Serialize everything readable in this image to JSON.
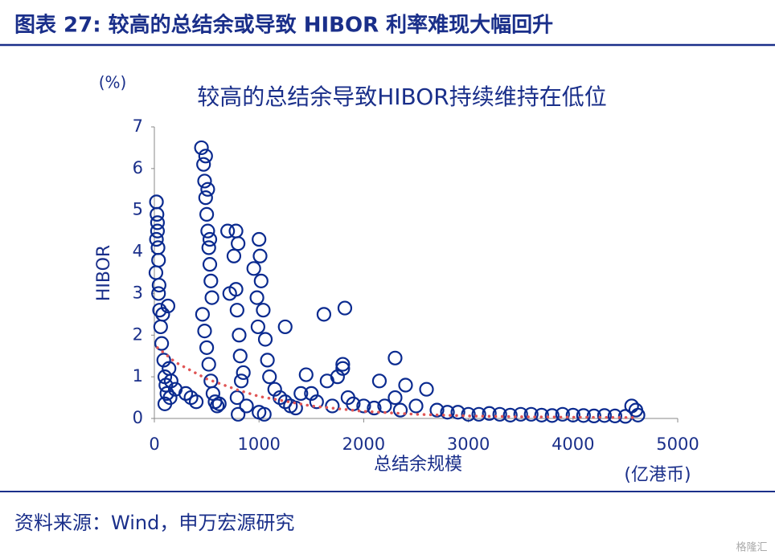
{
  "header": {
    "title": "图表 27: 较高的总结余或导致 HIBOR 利率难现大幅回升"
  },
  "chart_data": {
    "type": "scatter",
    "title": "较高的总结余导致HIBOR持续维持在低位",
    "y_unit": "(%)",
    "y_label": "HIBOR",
    "x_label": "总结余规模",
    "x_unit": "(亿港币)",
    "xlim": [
      0,
      5000
    ],
    "xticks": [
      0,
      1000,
      2000,
      3000,
      4000,
      5000
    ],
    "ylim": [
      0,
      7
    ],
    "yticks": [
      0,
      1,
      2,
      3,
      4,
      5,
      6,
      7
    ],
    "series": [
      {
        "color": "#0a2a8f",
        "x": [
          20,
          25,
          30,
          35,
          40,
          15,
          45,
          30,
          20,
          40,
          50,
          60,
          70,
          80,
          90,
          100,
          110,
          120,
          130,
          140,
          150,
          100,
          160,
          200,
          300,
          350,
          400,
          450,
          470,
          480,
          490,
          500,
          510,
          520,
          530,
          540,
          550,
          460,
          480,
          500,
          520,
          540,
          560,
          580,
          600,
          620,
          490,
          510,
          530,
          700,
          720,
          760,
          780,
          790,
          800,
          810,
          820,
          830,
          790,
          850,
          880,
          800,
          780,
          950,
          980,
          990,
          1000,
          1010,
          1020,
          1040,
          1060,
          1080,
          1100,
          1150,
          1200,
          1250,
          1300,
          1350,
          1000,
          1050,
          1250,
          1450,
          1500,
          1550,
          1620,
          1650,
          1700,
          1750,
          1800,
          1820,
          1850,
          1900,
          2000,
          2100,
          2150,
          2200,
          2300,
          2350,
          2400,
          2500,
          2600,
          2700,
          2800,
          2900,
          3000,
          3100,
          3200,
          3300,
          3400,
          3500,
          3600,
          3700,
          3800,
          3900,
          4000,
          4100,
          4200,
          4300,
          4400,
          4500,
          4560,
          4600,
          4620,
          1800,
          1400,
          2300
        ],
        "values": [
          5.2,
          4.9,
          4.5,
          4.1,
          3.8,
          3.5,
          3.2,
          4.7,
          4.3,
          3.0,
          2.6,
          2.2,
          1.8,
          2.5,
          1.4,
          1.0,
          0.8,
          0.6,
          2.7,
          1.2,
          0.5,
          0.35,
          0.9,
          0.7,
          0.6,
          0.5,
          0.4,
          6.5,
          6.1,
          5.7,
          5.3,
          4.9,
          4.5,
          4.1,
          3.7,
          3.3,
          2.9,
          2.5,
          2.1,
          1.7,
          1.3,
          0.9,
          0.6,
          0.4,
          0.3,
          0.35,
          6.3,
          5.5,
          4.3,
          4.5,
          3.0,
          3.9,
          3.1,
          2.6,
          4.2,
          2.0,
          1.5,
          0.9,
          0.5,
          1.1,
          0.3,
          0.1,
          4.5,
          3.6,
          2.9,
          2.2,
          4.3,
          3.9,
          3.3,
          2.6,
          1.9,
          1.4,
          1.0,
          0.7,
          0.5,
          0.4,
          0.3,
          0.25,
          0.15,
          0.1,
          2.2,
          1.05,
          0.6,
          0.4,
          2.5,
          0.9,
          0.3,
          1.0,
          1.3,
          2.65,
          0.5,
          0.35,
          0.3,
          0.25,
          0.9,
          0.3,
          1.45,
          0.2,
          0.8,
          0.3,
          0.7,
          0.2,
          0.15,
          0.15,
          0.1,
          0.1,
          0.12,
          0.1,
          0.08,
          0.1,
          0.1,
          0.08,
          0.07,
          0.1,
          0.08,
          0.07,
          0.06,
          0.07,
          0.06,
          0.05,
          0.3,
          0.2,
          0.08,
          1.2,
          0.6,
          0.5
        ]
      },
      {
        "color": "#e05555",
        "x": [
          30,
          200,
          500,
          800,
          1000,
          1500,
          2000,
          2500,
          3000,
          3500,
          4000,
          4600
        ],
        "values": [
          1.7,
          1.35,
          0.95,
          0.68,
          0.53,
          0.3,
          0.17,
          0.1,
          0.06,
          0.04,
          0.03,
          0.02
        ]
      }
    ]
  },
  "footer": {
    "source": "资料来源：Wind，申万宏源研究",
    "watermark": "格隆汇"
  }
}
